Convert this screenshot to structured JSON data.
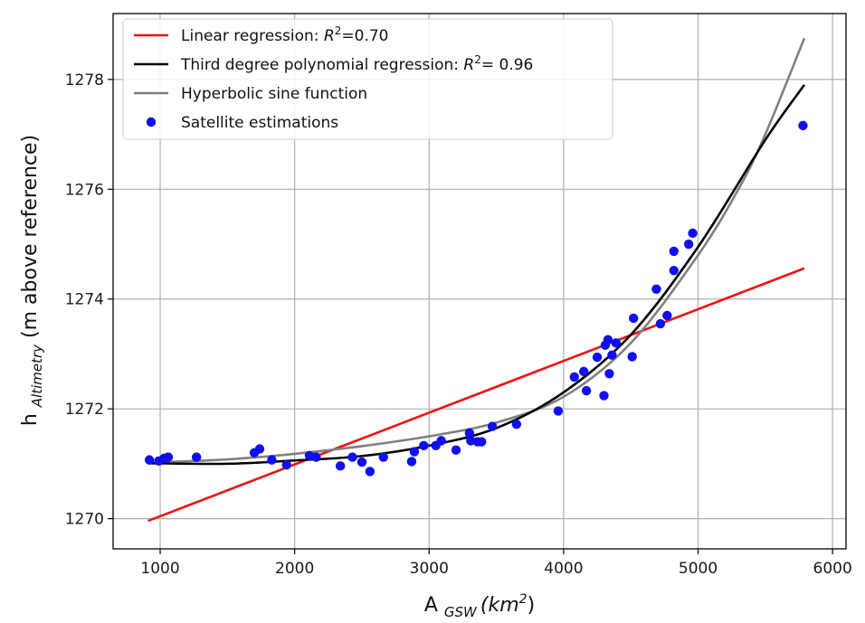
{
  "chart_data": {
    "type": "scatter",
    "xlabel": {
      "main": "A ",
      "sub": "GSW",
      "unit_base": "(km",
      "unit_exp": "2",
      "unit_close": ")"
    },
    "ylabel": {
      "main": "h ",
      "sub": "Altimetry",
      "rest": " (m above reference)"
    },
    "xlim": [
      650,
      6100
    ],
    "ylim": [
      1269.45,
      1279.2
    ],
    "xticks": [
      1000,
      2000,
      3000,
      4000,
      5000,
      6000
    ],
    "yticks": [
      1270,
      1272,
      1274,
      1276,
      1278
    ],
    "grid": true,
    "legend_position": "top-left",
    "legend": [
      {
        "key": "linear",
        "prefix": "Linear regression: ",
        "r": "R",
        "exp": "2",
        "suffix": "=0.70",
        "color": "#ee1111",
        "marker": "line"
      },
      {
        "key": "poly",
        "prefix": "Third degree polynomial regression: ",
        "r": "R",
        "exp": "2",
        "suffix": "= 0.96",
        "color": "#000000",
        "marker": "line"
      },
      {
        "key": "sinh",
        "prefix": "Hyperbolic sine function",
        "r": "",
        "exp": "",
        "suffix": "",
        "color": "#808080",
        "marker": "line"
      },
      {
        "key": "points",
        "prefix": "Satellite estimations",
        "r": "",
        "exp": "",
        "suffix": "",
        "color": "#1010ee",
        "marker": "dot"
      }
    ],
    "series": [
      {
        "name": "Satellite estimations",
        "type": "scatter",
        "color": "#1010ee",
        "points": [
          [
            920,
            1271.07
          ],
          [
            990,
            1271.05
          ],
          [
            1030,
            1271.1
          ],
          [
            1060,
            1271.12
          ],
          [
            1270,
            1271.12
          ],
          [
            1700,
            1271.2
          ],
          [
            1740,
            1271.27
          ],
          [
            1830,
            1271.07
          ],
          [
            1940,
            1270.98
          ],
          [
            2110,
            1271.15
          ],
          [
            2160,
            1271.12
          ],
          [
            2340,
            1270.96
          ],
          [
            2430,
            1271.12
          ],
          [
            2500,
            1271.03
          ],
          [
            2560,
            1270.86
          ],
          [
            2660,
            1271.12
          ],
          [
            2870,
            1271.04
          ],
          [
            2890,
            1271.22
          ],
          [
            2960,
            1271.33
          ],
          [
            3050,
            1271.33
          ],
          [
            3090,
            1271.42
          ],
          [
            3200,
            1271.25
          ],
          [
            3300,
            1271.56
          ],
          [
            3310,
            1271.42
          ],
          [
            3360,
            1271.4
          ],
          [
            3390,
            1271.4
          ],
          [
            3470,
            1271.68
          ],
          [
            3650,
            1271.72
          ],
          [
            3960,
            1271.96
          ],
          [
            4080,
            1272.58
          ],
          [
            4150,
            1272.68
          ],
          [
            4170,
            1272.33
          ],
          [
            4250,
            1272.94
          ],
          [
            4300,
            1272.24
          ],
          [
            4310,
            1273.16
          ],
          [
            4330,
            1273.26
          ],
          [
            4340,
            1272.64
          ],
          [
            4360,
            1272.98
          ],
          [
            4390,
            1273.2
          ],
          [
            4510,
            1272.95
          ],
          [
            4520,
            1273.65
          ],
          [
            4690,
            1274.18
          ],
          [
            4720,
            1273.55
          ],
          [
            4770,
            1273.7
          ],
          [
            4820,
            1274.87
          ],
          [
            4820,
            1274.52
          ],
          [
            4930,
            1275.0
          ],
          [
            4960,
            1275.2
          ],
          [
            5780,
            1277.16
          ]
        ]
      },
      {
        "name": "Linear regression",
        "type": "line",
        "color": "#ee1111",
        "x": [
          910,
          5790
        ],
        "y": [
          1269.96,
          1274.56
        ]
      },
      {
        "name": "Third degree polynomial regression",
        "type": "line",
        "color": "#000000",
        "x": [
          910,
          1500,
          2000,
          2500,
          3000,
          3500,
          4000,
          4500,
          5000,
          5500,
          5790
        ],
        "y": [
          1271.01,
          1271.0,
          1271.06,
          1271.14,
          1271.33,
          1271.65,
          1272.3,
          1273.35,
          1274.95,
          1276.9,
          1277.9
        ]
      },
      {
        "name": "Hyperbolic sine function",
        "type": "line",
        "color": "#808080",
        "x": [
          910,
          1500,
          2000,
          2500,
          3000,
          3500,
          4000,
          4500,
          5000,
          5300,
          5500,
          5790
        ],
        "y": [
          1271.02,
          1271.08,
          1271.18,
          1271.32,
          1271.5,
          1271.75,
          1272.22,
          1273.2,
          1274.8,
          1276.0,
          1277.0,
          1278.75
        ]
      }
    ]
  }
}
